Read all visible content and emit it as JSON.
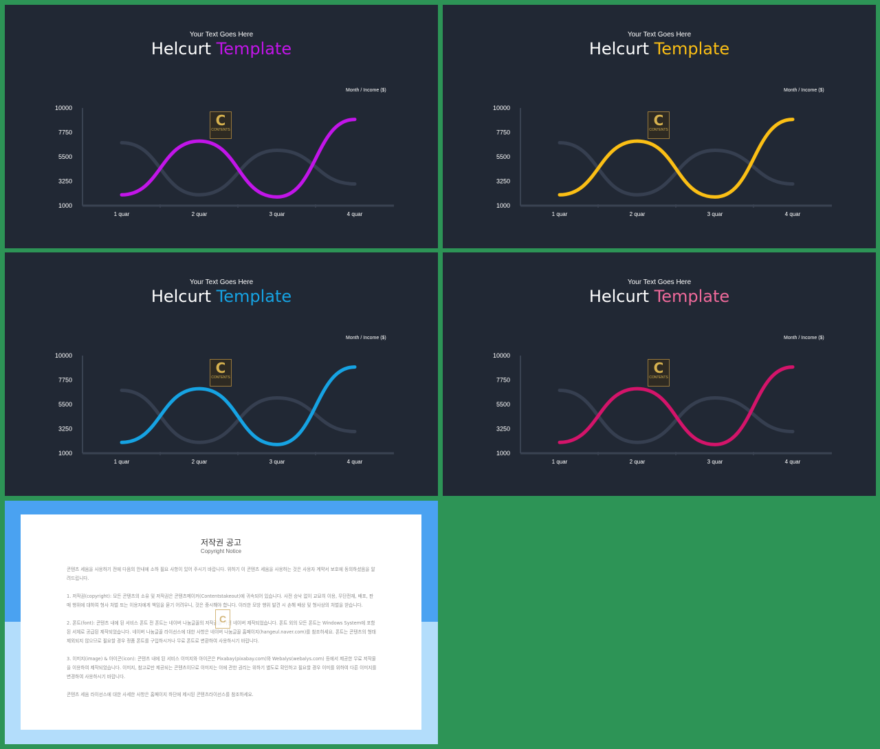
{
  "slides": [
    {
      "subtitle": "Your Text Goes Here",
      "title_main": "Helcurt",
      "title_accent": "Template",
      "accent": "#c215e9",
      "unit_label": "Month  / Income ($)",
      "logo": {
        "letter": "C",
        "text": "CONTENTS"
      }
    },
    {
      "subtitle": "Your Text Goes Here",
      "title_main": "Helcurt",
      "title_accent": "Template",
      "accent": "#fbbf15",
      "unit_label": "Month  / Income ($)",
      "logo": {
        "letter": "C",
        "text": "CONTENTS"
      }
    },
    {
      "subtitle": "Your Text Goes Here",
      "title_main": "Helcurt",
      "title_accent": "Template",
      "accent": "#16a3e3",
      "unit_label": "Month  / Income ($)",
      "logo": {
        "letter": "C",
        "text": "CONTENTS"
      }
    },
    {
      "subtitle": "Your Text Goes Here",
      "title_main": "Helcurt",
      "title_accent": "Template",
      "title_accent_color": "#f06a9b",
      "accent": "#d4146a",
      "unit_label": "Month  / Income ($)",
      "logo": {
        "letter": "C",
        "text": "CONTENTS"
      }
    }
  ],
  "chart_data": {
    "type": "line",
    "categories": [
      "1 quar",
      "2 quar",
      "3 quar",
      "4 quar"
    ],
    "yticks": [
      "10000",
      "7750",
      "5500",
      "3250",
      "1000"
    ],
    "ylim": [
      1000,
      10000
    ],
    "series": [
      {
        "values": [
          2000,
          6950,
          1800,
          8950
        ],
        "color": "accent"
      },
      {
        "values": [
          6800,
          2000,
          6100,
          3000
        ],
        "color": "#363f50"
      }
    ]
  },
  "notice": {
    "title": "저작권 공고",
    "subtitle": "Copyright Notice",
    "paragraphs": [
      "콘텐츠 세움을 사용하기 전에 다음의 안내에 소하 필요 사항이 있어 주시기 바랍니다. 위하기 이 콘텐츠 세움을 사용하는 것은 사용자 계약서 보호에 동의하셨음을 알려드립니다.",
      "1. 저작권(copyright): 모든 콘텐츠의 소유 및 저작권은 콘텐츠메이커(Contentstakeout)에 귀속되어 있습니다. 사전 승낙 없이 교묘히 이용, 무단전재, 배포, 판매 행위에 대하여 형사 처벌 또는 이용자에게 책임을 묻기 어려우니, 것은 중시해야 합니다. 이러한 모방 행위 발견 시 손해 배상 및 형사상의 처벌을 받습니다.",
      "2. 폰트(font): 콘텐츠 내에 된 서비스 폰트 전 폰트는 네이버 나눔글꼴의 저작권을 가진 네이버 제작되었습니다. 폰트 외의 모든 폰트는 Windows System에 포함된 서체로 공급된 제작되었습니다. 네이버 나눔글꼴 라이선스에 대한 사항은 네이버 나눔글꼴 홈페이지(hangeul.naver.com)를 참조하세요. 폰트는 콘텐츠의 형태 제외되지 않으므로 필요할 경우 정품 폰트를 구입하시거나 무료 폰트로 변환하여 사용하시기 바랍니다.",
      "3. 이미지(image) & 아이콘(icon): 콘텐츠 내에 된 서비스 이미지와 아이콘은 Pixabay(pixabay.com)와 Webalys(webalys.com) 등에서 제공한 무료 저작물을 이용하여 제작되었습니다. 이미지, 참고로만 제공되는 콘텐츠이므로 이미지는 이에 관한 권리는 위하기 별도로 확인하고 필요할 경우 이미를 위하여 다른 이미지를 변경하여 사용하시기 바랍니다.",
      "콘텐츠 세움 라이선스에 대한 사세한 사항은 홈페이지 하단에 제시된 콘텐츠라이선스를 참조하세요."
    ]
  }
}
